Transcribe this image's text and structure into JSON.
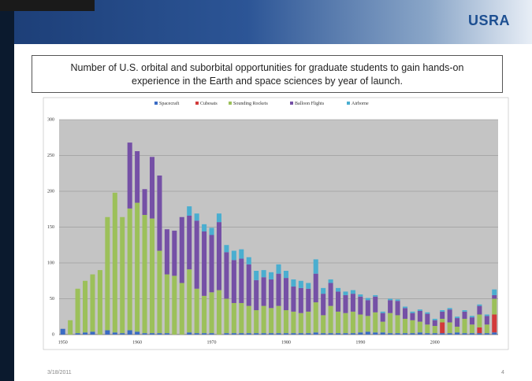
{
  "slide": {
    "logo": "USRA",
    "date": "3/18/2011",
    "page": "4"
  },
  "chart_data": {
    "type": "stacked-bar",
    "title": "Number of U.S. orbital and suborbital opportunities for graduate students to gain hands-on experience in the Earth and space sciences by year of launch.",
    "categories": [
      "1950",
      null,
      null,
      null,
      null,
      null,
      null,
      null,
      null,
      null,
      "1960",
      null,
      null,
      null,
      null,
      null,
      null,
      null,
      null,
      null,
      "1970",
      null,
      null,
      null,
      null,
      null,
      null,
      null,
      null,
      null,
      "1980",
      null,
      null,
      null,
      null,
      null,
      null,
      null,
      null,
      null,
      "1990",
      null,
      null,
      null,
      null,
      null,
      null,
      null,
      null,
      null,
      "2000",
      null,
      null,
      null,
      null,
      null,
      null,
      null,
      null
    ],
    "series": [
      {
        "name": "Spacecraft",
        "color": "#3b6cc4",
        "values": [
          8,
          0,
          2,
          3,
          4,
          0,
          6,
          3,
          2,
          6,
          4,
          2,
          2,
          2,
          2,
          0,
          0,
          3,
          2,
          2,
          2,
          0,
          2,
          2,
          2,
          2,
          2,
          2,
          2,
          2,
          2,
          2,
          2,
          2,
          3,
          2,
          2,
          2,
          2,
          2,
          3,
          4,
          3,
          3,
          2,
          2,
          2,
          2,
          3,
          2,
          2,
          2,
          2,
          3,
          2,
          2,
          2,
          2,
          3
        ]
      },
      {
        "name": "Cubesats",
        "color": "#d23a3a",
        "values": [
          0,
          0,
          0,
          0,
          0,
          0,
          0,
          0,
          0,
          0,
          0,
          0,
          0,
          0,
          0,
          0,
          0,
          0,
          0,
          0,
          0,
          0,
          0,
          0,
          0,
          0,
          0,
          0,
          0,
          0,
          0,
          0,
          0,
          0,
          0,
          0,
          0,
          0,
          0,
          0,
          0,
          0,
          0,
          0,
          0,
          0,
          0,
          0,
          0,
          0,
          0,
          15,
          0,
          0,
          0,
          0,
          8,
          0,
          25
        ]
      },
      {
        "name": "Sounding Rockets",
        "color": "#9cc05a",
        "values": [
          0,
          20,
          62,
          72,
          80,
          90,
          158,
          195,
          162,
          170,
          180,
          165,
          160,
          115,
          82,
          82,
          72,
          88,
          62,
          52,
          57,
          62,
          48,
          42,
          42,
          38,
          32,
          38,
          35,
          38,
          32,
          30,
          28,
          30,
          42,
          25,
          38,
          30,
          28,
          30,
          25,
          22,
          28,
          15,
          28,
          25,
          20,
          18,
          15,
          12,
          10,
          5,
          15,
          8,
          20,
          12,
          18,
          12,
          22
        ]
      },
      {
        "name": "Balloon Flights",
        "color": "#7550a6",
        "values": [
          0,
          0,
          0,
          0,
          0,
          0,
          0,
          0,
          0,
          92,
          72,
          36,
          86,
          105,
          63,
          63,
          92,
          75,
          95,
          90,
          80,
          95,
          65,
          60,
          62,
          58,
          42,
          40,
          40,
          45,
          45,
          35,
          35,
          32,
          40,
          30,
          32,
          28,
          25,
          25,
          25,
          22,
          22,
          12,
          18,
          20,
          15,
          10,
          15,
          15,
          8,
          10,
          18,
          12,
          10,
          10,
          12,
          12,
          5
        ]
      },
      {
        "name": "Airborne",
        "color": "#4aaed0",
        "values": [
          0,
          0,
          0,
          0,
          0,
          0,
          0,
          0,
          0,
          0,
          0,
          0,
          0,
          0,
          0,
          0,
          0,
          13,
          10,
          10,
          10,
          12,
          10,
          13,
          13,
          10,
          13,
          10,
          10,
          13,
          10,
          10,
          10,
          8,
          20,
          8,
          5,
          5,
          5,
          5,
          3,
          3,
          2,
          2,
          2,
          2,
          2,
          2,
          2,
          2,
          2,
          2,
          2,
          2,
          2,
          2,
          2,
          2,
          8
        ]
      }
    ],
    "ylim": [
      0,
      300
    ],
    "yticks": [
      0,
      50,
      100,
      150,
      200,
      250,
      300
    ],
    "grid": true,
    "legend": "top"
  }
}
